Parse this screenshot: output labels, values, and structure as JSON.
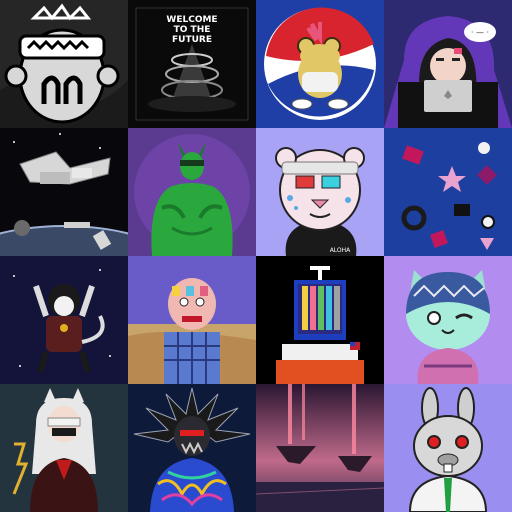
{
  "gallery": {
    "tiles": [
      {
        "name": "doodle-monkey-art",
        "background": "#2a2a2a"
      },
      {
        "name": "welcome-to-the-future-art",
        "background": "#0a0a0a",
        "line1": "WELCOME",
        "line2": "TO THE",
        "line3": "FUTURE"
      },
      {
        "name": "frog-on-logo-art",
        "background": "#1f3fa6"
      },
      {
        "name": "hooded-hacker-art",
        "background": "#2d2a72",
        "bubble": "· — ·"
      },
      {
        "name": "space-station-art",
        "background": "#0c0c12"
      },
      {
        "name": "green-alien-art",
        "background": "#5b3b8f"
      },
      {
        "name": "aloha-leopard-art",
        "background": "#a9a3f5",
        "shirt_text": "ALOHA"
      },
      {
        "name": "geometric-shapes-art",
        "background": "#1d3fa0"
      },
      {
        "name": "astro-lemur-art",
        "background": "#14143a"
      },
      {
        "name": "desert-creature-art",
        "background": "#6a5cc8"
      },
      {
        "name": "pixel-astronaut-art",
        "background": "#000000"
      },
      {
        "name": "winking-cat-art",
        "background": "#b38cf0"
      },
      {
        "name": "wolf-girl-art",
        "background": "#24343e"
      },
      {
        "name": "spiked-warrior-art",
        "background": "#0e1a3a"
      },
      {
        "name": "floating-islands-art",
        "background": "#3a1e3a"
      },
      {
        "name": "silver-rabbit-art",
        "background": "#9a8ff0"
      }
    ]
  }
}
